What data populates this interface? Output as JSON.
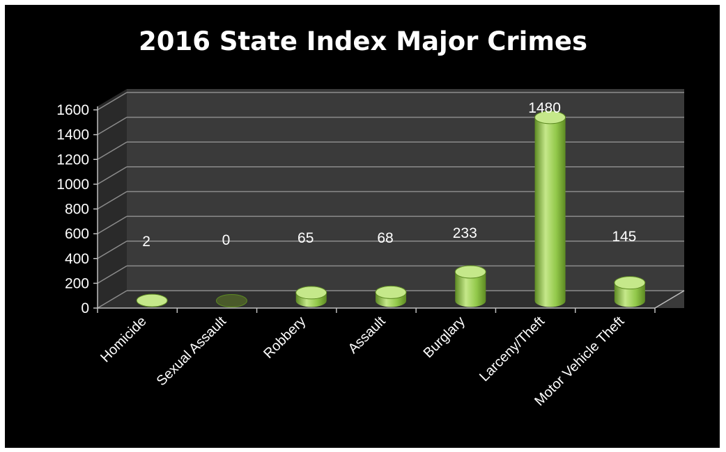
{
  "chart_data": {
    "type": "bar",
    "title": "2016 State Index Major Crimes",
    "categories": [
      "Homicide",
      "Sexual Assault",
      "Robbery",
      "Assault",
      "Burglary",
      "Larceny/Theft",
      "Motor Vehicle Theft"
    ],
    "values": [
      2,
      0,
      65,
      68,
      233,
      1480,
      145
    ],
    "data_labels": [
      "2",
      "0",
      "65",
      "68",
      "233",
      "1480",
      "145"
    ],
    "y_ticks": [
      "0",
      "200",
      "400",
      "600",
      "800",
      "1000",
      "1200",
      "1400",
      "1600"
    ],
    "ylim": [
      0,
      1600
    ],
    "grid": true,
    "legend": "none",
    "style": "3d-cylinder",
    "colors": {
      "background": "#000000",
      "bar": "#92c84a",
      "bar_dark": "#5d8a22",
      "bar_light": "#c5e88a",
      "grid": "#8c8c8c",
      "wall": "#3a3a3a",
      "text": "#ffffff"
    }
  }
}
